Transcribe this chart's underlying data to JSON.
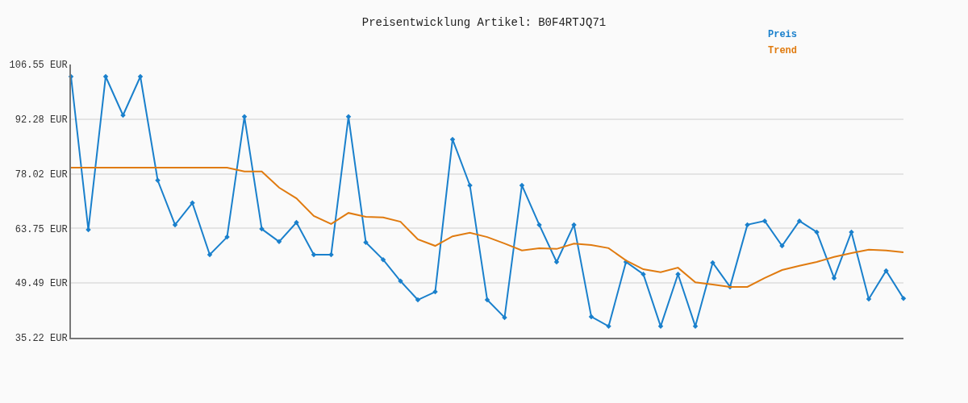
{
  "chart_data": {
    "type": "line",
    "title": "Preisentwicklung Artikel: B0F4RTJQ71",
    "categories": [
      null,
      null,
      null,
      null,
      null,
      null,
      null,
      null,
      null,
      null,
      null,
      null,
      null,
      null,
      null,
      null,
      null,
      null,
      null,
      null,
      null,
      null,
      null,
      null,
      null,
      null,
      null,
      null,
      null,
      null,
      null,
      null,
      null,
      null,
      null,
      null,
      null,
      null,
      null,
      null,
      null,
      null,
      null,
      null,
      null,
      null,
      null,
      null,
      null
    ],
    "series": [
      {
        "name": "Preis",
        "color": "#1a80cc",
        "marker": "diamond",
        "values": [
          103.4,
          63.4,
          103.4,
          93.3,
          103.4,
          76.3,
          64.7,
          70.4,
          56.9,
          61.5,
          92.9,
          63.6,
          60.3,
          65.3,
          56.9,
          56.9,
          92.9,
          60.1,
          55.6,
          50.0,
          45.1,
          47.2,
          87.0,
          75.0,
          45.1,
          40.5,
          75.0,
          64.7,
          55.0,
          64.7,
          40.7,
          38.2,
          55.0,
          51.8,
          38.2,
          51.8,
          38.2,
          54.8,
          48.5,
          64.7,
          65.7,
          59.2,
          65.7,
          62.8,
          50.8,
          62.8,
          45.3,
          52.7,
          45.5
        ]
      },
      {
        "name": "Trend",
        "color": "#e07b10",
        "values": [
          79.6,
          79.6,
          79.6,
          79.6,
          79.6,
          79.6,
          79.6,
          79.6,
          79.6,
          79.6,
          78.6,
          78.6,
          74.4,
          71.6,
          67.0,
          64.9,
          67.8,
          66.8,
          66.6,
          65.5,
          60.9,
          59.2,
          61.7,
          62.6,
          61.5,
          59.8,
          58.0,
          58.6,
          58.4,
          59.8,
          59.4,
          58.6,
          55.4,
          53.1,
          52.3,
          53.5,
          49.7,
          49.1,
          48.5,
          48.5,
          50.8,
          52.9,
          54.0,
          55.0,
          56.3,
          57.3,
          58.2,
          58.0,
          57.5
        ]
      }
    ],
    "ylim": [
      35.22,
      106.55
    ],
    "yticks": [
      {
        "value": 35.22,
        "label": "35.22 EUR"
      },
      {
        "value": 49.49,
        "label": "49.49 EUR"
      },
      {
        "value": 63.75,
        "label": "63.75 EUR"
      },
      {
        "value": 78.02,
        "label": "78.02 EUR"
      },
      {
        "value": 92.28,
        "label": "92.28 EUR"
      },
      {
        "value": 106.55,
        "label": "106.55 EUR"
      }
    ],
    "tick_labels": "y",
    "grid": "y",
    "legend": "top right"
  }
}
